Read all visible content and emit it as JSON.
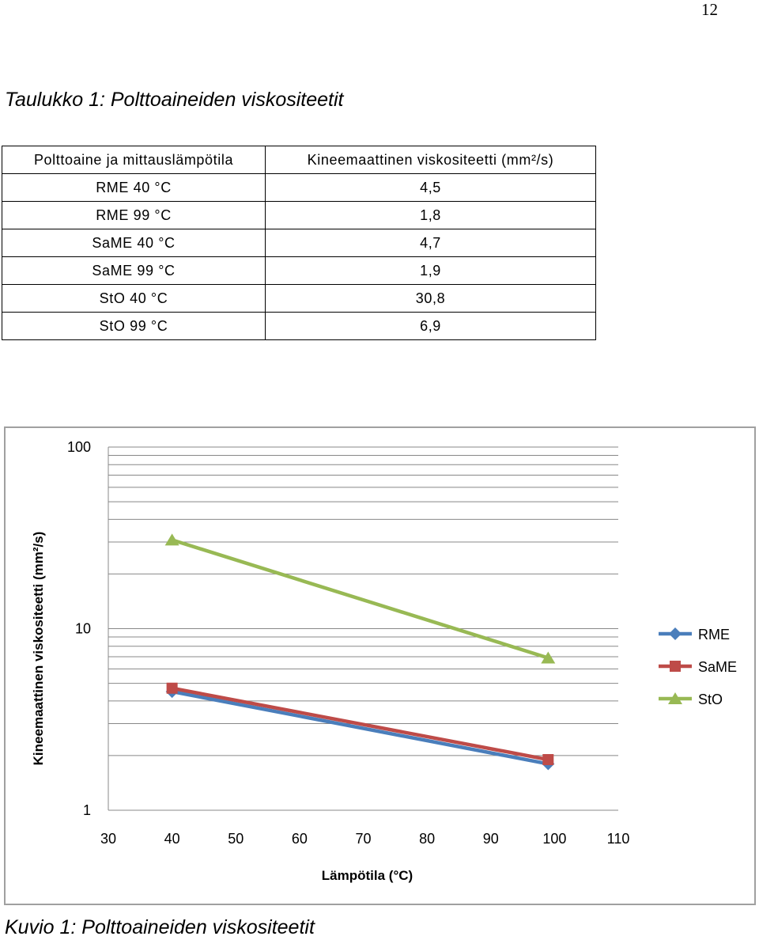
{
  "page_number": "12",
  "table_caption": "Taulukko 1: Polttoaineiden viskositeetit",
  "table": {
    "headers": [
      "Polttoaine ja mittauslämpötila",
      "Kineemaattinen viskositeetti (mm²/s)"
    ],
    "rows": [
      [
        "RME 40 °C",
        "4,5"
      ],
      [
        "RME 99 °C",
        "1,8"
      ],
      [
        "SaME 40 °C",
        "4,7"
      ],
      [
        "SaME 99 °C",
        "1,9"
      ],
      [
        "StO 40 °C",
        "30,8"
      ],
      [
        "StO 99 °C",
        "6,9"
      ]
    ]
  },
  "chart_data": {
    "type": "line",
    "xlabel": "Lämpötila (°C)",
    "ylabel": "Kineemaattinen viskositeetti (mm²/s)",
    "xlim": [
      30,
      110
    ],
    "x_ticks": [
      "30",
      "40",
      "50",
      "60",
      "70",
      "80",
      "90",
      "100",
      "110"
    ],
    "ylim": [
      1,
      100
    ],
    "y_scale": "log",
    "y_ticks": [
      "1",
      "10",
      "100"
    ],
    "grid": "horizontal",
    "legend_position": "right",
    "series": [
      {
        "name": "RME",
        "x": [
          40,
          99
        ],
        "values": [
          4.5,
          1.8
        ],
        "color": "#4a7ebb",
        "marker": "diamond"
      },
      {
        "name": "SaME",
        "x": [
          40,
          99
        ],
        "values": [
          4.7,
          1.9
        ],
        "color": "#be4b48",
        "marker": "square"
      },
      {
        "name": "StO",
        "x": [
          40,
          99
        ],
        "values": [
          30.8,
          6.9
        ],
        "color": "#98b954",
        "marker": "triangle"
      }
    ]
  },
  "figure_caption": "Kuvio 1: Polttoaineiden viskositeetit"
}
